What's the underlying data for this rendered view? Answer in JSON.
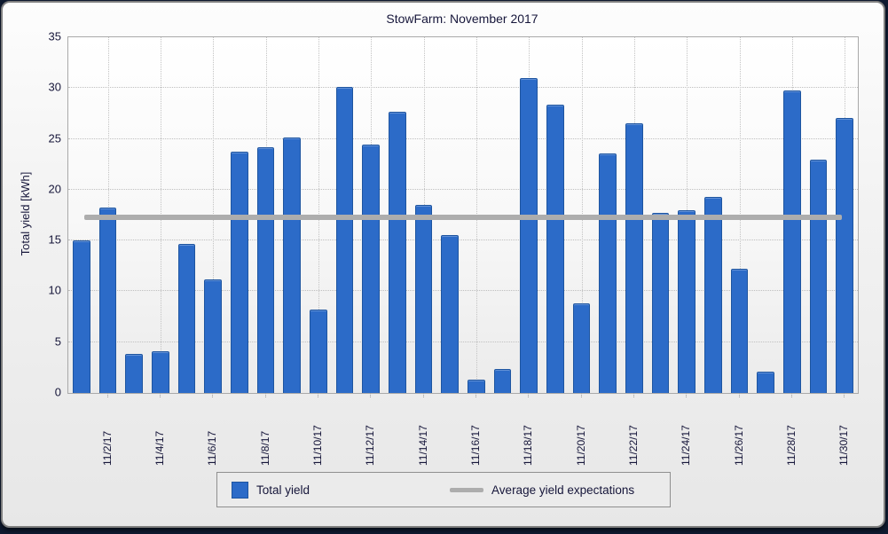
{
  "title": "StowFarm: November 2017",
  "y_axis": {
    "label": "Total yield [kWh]"
  },
  "legend": {
    "total_yield": "Total yield",
    "average": "Average yield expectations"
  },
  "colors": {
    "bar_fill": "#2c6bc8",
    "bar_border": "#1e55a0",
    "average_line": "#adadad",
    "grid": "#bfbfbf",
    "panel_background": "#ececec",
    "panel_border": "#7f7f7f",
    "outer_background": "#0f1a30",
    "text": "#16163a"
  },
  "chart_data": {
    "type": "bar",
    "title": "StowFarm: November 2017",
    "xlabel": "",
    "ylabel": "Total yield [kWh]",
    "ylim": [
      0,
      35
    ],
    "y_ticks": [
      0,
      5,
      10,
      15,
      20,
      25,
      30,
      35
    ],
    "grid": true,
    "legend_position": "bottom",
    "labeled_tick_interval": 2,
    "categories": [
      "11/1/17",
      "11/2/17",
      "11/3/17",
      "11/4/17",
      "11/5/17",
      "11/6/17",
      "11/7/17",
      "11/8/17",
      "11/9/17",
      "11/10/17",
      "11/11/17",
      "11/12/17",
      "11/13/17",
      "11/14/17",
      "11/15/17",
      "11/16/17",
      "11/17/17",
      "11/18/17",
      "11/19/17",
      "11/20/17",
      "11/21/17",
      "11/22/17",
      "11/23/17",
      "11/24/17",
      "11/25/17",
      "11/26/17",
      "11/27/17",
      "11/28/17",
      "11/29/17",
      "11/30/17"
    ],
    "series": [
      {
        "name": "Total yield",
        "type": "bar",
        "color": "#2c6bc8",
        "values": [
          15.0,
          18.2,
          3.8,
          4.1,
          14.7,
          11.2,
          23.7,
          24.2,
          25.1,
          8.2,
          30.1,
          24.4,
          27.7,
          18.5,
          15.5,
          1.3,
          2.4,
          31.0,
          28.4,
          8.8,
          23.6,
          26.5,
          17.7,
          18.0,
          19.3,
          12.2,
          2.1,
          29.8,
          23.0,
          27.1
        ]
      },
      {
        "name": "Average yield expectations",
        "type": "hline",
        "color": "#adadad",
        "value": 17.3
      }
    ]
  }
}
